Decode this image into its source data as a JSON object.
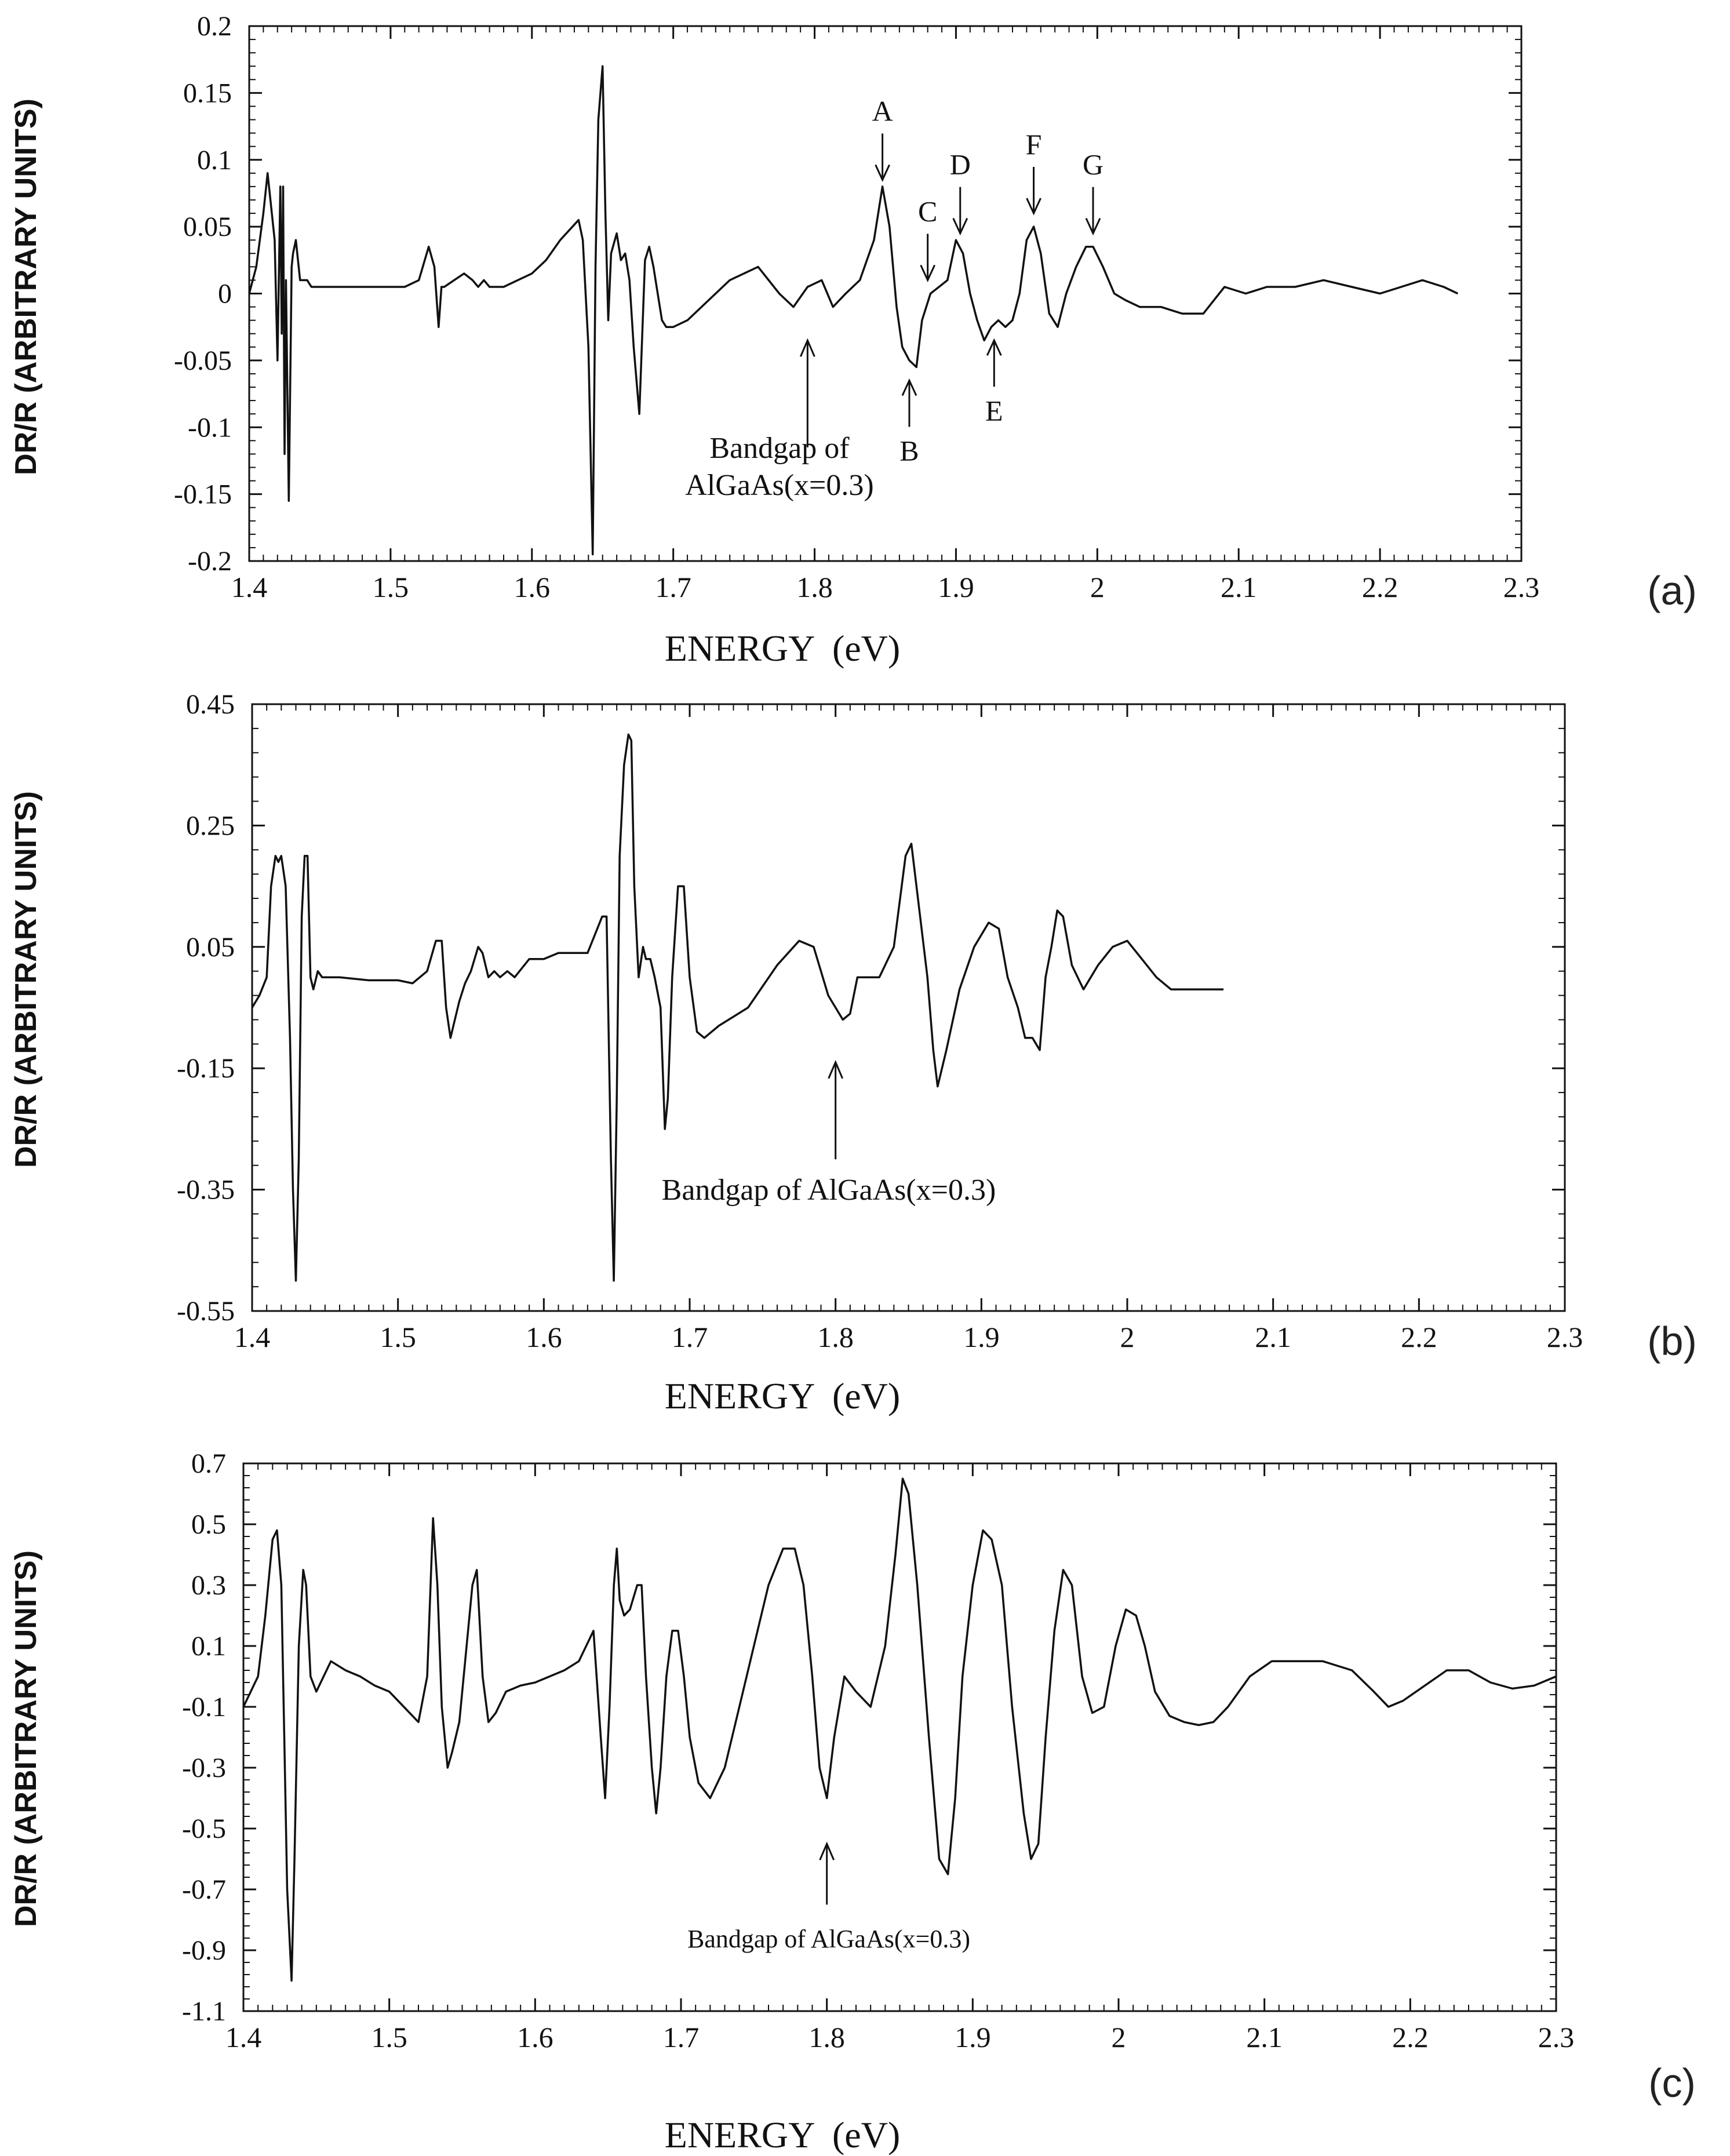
{
  "chart_data": [
    {
      "type": "line",
      "panel_label": "(a)",
      "xlabel": "ENERGY  (eV)",
      "ylabel": "DR/R (ARBITRARY UNITS)",
      "xlim": [
        1.4,
        2.3
      ],
      "ylim": [
        -0.2,
        0.2
      ],
      "x_ticks": [
        "1.4",
        "1.5",
        "1.6",
        "1.7",
        "1.8",
        "1.9",
        "2",
        "2.1",
        "2.2",
        "2.3"
      ],
      "y_ticks": [
        "0.2",
        "0.15",
        "0.1",
        "0.05",
        "0",
        "-0.05",
        "-0.1",
        "-0.15",
        "-0.2"
      ],
      "grid": false,
      "series": [
        {
          "x": [
            1.4,
            1.405,
            1.41,
            1.413,
            1.415,
            1.418,
            1.42,
            1.422,
            1.423,
            1.424,
            1.425,
            1.426,
            1.428,
            1.43,
            1.431,
            1.433,
            1.434,
            1.436,
            1.438,
            1.441,
            1.444,
            1.446,
            1.45,
            1.46,
            1.48,
            1.5,
            1.51,
            1.52,
            1.527,
            1.531,
            1.534,
            1.536,
            1.538,
            1.545,
            1.552,
            1.558,
            1.562,
            1.566,
            1.57,
            1.58,
            1.59,
            1.6,
            1.61,
            1.62,
            1.633,
            1.636,
            1.64,
            1.643,
            1.645,
            1.647,
            1.65,
            1.652,
            1.654,
            1.656,
            1.66,
            1.663,
            1.666,
            1.669,
            1.672,
            1.676,
            1.68,
            1.683,
            1.686,
            1.689,
            1.692,
            1.695,
            1.7,
            1.71,
            1.72,
            1.74,
            1.76,
            1.775,
            1.785,
            1.795,
            1.805,
            1.813,
            1.822,
            1.832,
            1.842,
            1.848,
            1.853,
            1.858,
            1.862,
            1.867,
            1.872,
            1.876,
            1.882,
            1.888,
            1.894,
            1.9,
            1.905,
            1.91,
            1.915,
            1.92,
            1.925,
            1.93,
            1.935,
            1.94,
            1.945,
            1.95,
            1.955,
            1.96,
            1.966,
            1.972,
            1.978,
            1.985,
            1.992,
            1.997,
            2.004,
            2.012,
            2.02,
            2.03,
            2.045,
            2.06,
            2.075,
            2.09,
            2.105,
            2.12,
            2.14,
            2.16,
            2.18,
            2.2,
            2.215,
            2.23,
            2.245,
            2.255
          ],
          "y": [
            0.0,
            0.02,
            0.06,
            0.09,
            0.07,
            0.04,
            -0.05,
            0.08,
            -0.03,
            0.08,
            -0.12,
            0.01,
            -0.155,
            0.02,
            0.03,
            0.04,
            0.03,
            0.01,
            0.01,
            0.01,
            0.005,
            0.005,
            0.005,
            0.005,
            0.005,
            0.005,
            0.005,
            0.01,
            0.035,
            0.02,
            -0.025,
            0.005,
            0.005,
            0.01,
            0.015,
            0.01,
            0.005,
            0.01,
            0.005,
            0.005,
            0.01,
            0.015,
            0.025,
            0.04,
            0.055,
            0.04,
            -0.04,
            -0.195,
            0.02,
            0.13,
            0.17,
            0.06,
            -0.02,
            0.03,
            0.045,
            0.025,
            0.03,
            0.01,
            -0.04,
            -0.09,
            0.025,
            0.035,
            0.02,
            0.0,
            -0.02,
            -0.025,
            -0.025,
            -0.02,
            -0.01,
            0.01,
            0.02,
            0.0,
            -0.01,
            0.005,
            0.01,
            -0.01,
            0.0,
            0.01,
            0.04,
            0.08,
            0.05,
            -0.01,
            -0.04,
            -0.05,
            -0.055,
            -0.02,
            0.0,
            0.005,
            0.01,
            0.04,
            0.03,
            0.0,
            -0.02,
            -0.035,
            -0.025,
            -0.02,
            -0.025,
            -0.02,
            0.0,
            0.04,
            0.05,
            0.03,
            -0.015,
            -0.025,
            0.0,
            0.02,
            0.035,
            0.035,
            0.02,
            0.0,
            -0.005,
            -0.01,
            -0.01,
            -0.015,
            -0.015,
            0.005,
            0.0,
            0.005,
            0.005,
            0.01,
            0.005,
            0.0,
            0.005,
            0.01,
            0.005,
            0.0
          ]
        }
      ],
      "annotations": [
        {
          "label": "A",
          "x": 1.848,
          "y": 0.085,
          "dir": "down"
        },
        {
          "label": "B",
          "x": 1.867,
          "y": -0.065,
          "dir": "up"
        },
        {
          "label": "C",
          "x": 1.88,
          "y": 0.01,
          "dir": "down"
        },
        {
          "label": "D",
          "x": 1.903,
          "y": 0.045,
          "dir": "down"
        },
        {
          "label": "E",
          "x": 1.927,
          "y": -0.035,
          "dir": "up"
        },
        {
          "label": "F",
          "x": 1.955,
          "y": 0.06,
          "dir": "down"
        },
        {
          "label": "G",
          "x": 1.997,
          "y": 0.045,
          "dir": "down"
        }
      ],
      "note_lines": [
        "Bandgap of",
        "AlGaAs(x=0.3)"
      ],
      "note_arrow": {
        "x": 1.795,
        "y_tip": -0.035,
        "y_tail": -0.115
      }
    },
    {
      "type": "line",
      "panel_label": "(b)",
      "xlabel": "ENERGY  (eV)",
      "ylabel": "DR/R (ARBITRARY UNITS)",
      "xlim": [
        1.4,
        2.3
      ],
      "ylim": [
        -0.55,
        0.45
      ],
      "x_ticks": [
        "1.4",
        "1.5",
        "1.6",
        "1.7",
        "1.8",
        "1.9",
        "2",
        "2.1",
        "2.2",
        "2.3"
      ],
      "y_ticks": [
        "0.45",
        "0.25",
        "0.05",
        "-0.15",
        "-0.35",
        "-0.55"
      ],
      "grid": false,
      "series": [
        {
          "x": [
            1.4,
            1.405,
            1.41,
            1.413,
            1.416,
            1.418,
            1.42,
            1.423,
            1.426,
            1.428,
            1.43,
            1.432,
            1.434,
            1.436,
            1.438,
            1.44,
            1.442,
            1.445,
            1.448,
            1.452,
            1.46,
            1.48,
            1.5,
            1.51,
            1.52,
            1.526,
            1.53,
            1.533,
            1.536,
            1.538,
            1.542,
            1.546,
            1.55,
            1.555,
            1.558,
            1.562,
            1.566,
            1.57,
            1.575,
            1.58,
            1.59,
            1.6,
            1.61,
            1.62,
            1.63,
            1.64,
            1.643,
            1.646,
            1.648,
            1.65,
            1.652,
            1.655,
            1.658,
            1.66,
            1.662,
            1.665,
            1.668,
            1.67,
            1.673,
            1.676,
            1.68,
            1.683,
            1.685,
            1.688,
            1.692,
            1.696,
            1.7,
            1.705,
            1.71,
            1.72,
            1.74,
            1.76,
            1.775,
            1.785,
            1.795,
            1.8,
            1.805,
            1.81,
            1.815,
            1.822,
            1.83,
            1.84,
            1.848,
            1.852,
            1.858,
            1.863,
            1.867,
            1.87,
            1.876,
            1.885,
            1.895,
            1.905,
            1.912,
            1.918,
            1.925,
            1.93,
            1.935,
            1.94,
            1.944,
            1.948,
            1.952,
            1.956,
            1.962,
            1.97,
            1.98,
            1.99,
            2.0,
            2.01,
            2.02,
            2.03,
            2.04,
            2.05,
            2.06,
            2.066
          ],
          "y": [
            -0.05,
            -0.03,
            0.0,
            0.15,
            0.2,
            0.19,
            0.2,
            0.15,
            -0.1,
            -0.35,
            -0.5,
            -0.3,
            0.1,
            0.2,
            0.2,
            0.0,
            -0.02,
            0.01,
            0.0,
            0.0,
            0.0,
            -0.005,
            -0.005,
            -0.01,
            0.01,
            0.06,
            0.06,
            -0.05,
            -0.1,
            -0.08,
            -0.04,
            -0.01,
            0.01,
            0.05,
            0.04,
            0.0,
            0.01,
            0.0,
            0.01,
            0.0,
            0.03,
            0.03,
            0.04,
            0.04,
            0.04,
            0.1,
            0.1,
            -0.3,
            -0.5,
            -0.2,
            0.2,
            0.35,
            0.4,
            0.39,
            0.15,
            0.0,
            0.05,
            0.03,
            0.03,
            0.0,
            -0.05,
            -0.25,
            -0.2,
            0.0,
            0.15,
            0.15,
            0.0,
            -0.09,
            -0.1,
            -0.08,
            -0.05,
            0.02,
            0.06,
            0.05,
            -0.03,
            -0.05,
            -0.07,
            -0.06,
            0.0,
            0.0,
            0.0,
            0.05,
            0.2,
            0.22,
            0.1,
            0.0,
            -0.12,
            -0.18,
            -0.12,
            -0.02,
            0.05,
            0.09,
            0.08,
            0.0,
            -0.05,
            -0.1,
            -0.1,
            -0.12,
            0.0,
            0.05,
            0.11,
            0.1,
            0.02,
            -0.02,
            0.02,
            0.05,
            0.06,
            0.03,
            0.0,
            -0.02,
            -0.02,
            -0.02,
            -0.02,
            -0.02
          ]
        }
      ],
      "annotations": [],
      "note_lines": [
        "Bandgap of AlGaAs(x=0.3)"
      ],
      "note_arrow": {
        "x": 1.8,
        "y_tip": -0.14,
        "y_tail": -0.3
      }
    },
    {
      "type": "line",
      "panel_label": "(c)",
      "xlabel": "ENERGY  (eV)",
      "ylabel": "DR/R (ARBITRARY UNITS)",
      "xlim": [
        1.4,
        2.3
      ],
      "ylim": [
        -1.1,
        0.7
      ],
      "x_ticks": [
        "1.4",
        "1.5",
        "1.6",
        "1.7",
        "1.8",
        "1.9",
        "2",
        "2.1",
        "2.2",
        "2.3"
      ],
      "y_ticks": [
        "0.7",
        "0.5",
        "0.3",
        "0.1",
        "-0.1",
        "-0.3",
        "-0.5",
        "-0.7",
        "-0.9",
        "-1.1"
      ],
      "grid": false,
      "series": [
        {
          "x": [
            1.4,
            1.405,
            1.41,
            1.415,
            1.42,
            1.423,
            1.426,
            1.428,
            1.43,
            1.433,
            1.435,
            1.438,
            1.441,
            1.443,
            1.446,
            1.45,
            1.455,
            1.46,
            1.47,
            1.48,
            1.49,
            1.5,
            1.51,
            1.52,
            1.526,
            1.53,
            1.533,
            1.536,
            1.54,
            1.543,
            1.548,
            1.553,
            1.557,
            1.56,
            1.564,
            1.568,
            1.573,
            1.58,
            1.59,
            1.6,
            1.61,
            1.62,
            1.63,
            1.64,
            1.645,
            1.648,
            1.651,
            1.654,
            1.656,
            1.658,
            1.661,
            1.665,
            1.67,
            1.673,
            1.676,
            1.68,
            1.683,
            1.686,
            1.69,
            1.694,
            1.698,
            1.702,
            1.706,
            1.712,
            1.72,
            1.73,
            1.74,
            1.75,
            1.76,
            1.77,
            1.778,
            1.784,
            1.79,
            1.795,
            1.8,
            1.805,
            1.812,
            1.82,
            1.83,
            1.84,
            1.847,
            1.852,
            1.856,
            1.862,
            1.87,
            1.877,
            1.883,
            1.888,
            1.893,
            1.9,
            1.907,
            1.913,
            1.92,
            1.927,
            1.935,
            1.94,
            1.945,
            1.95,
            1.956,
            1.962,
            1.968,
            1.975,
            1.982,
            1.99,
            1.998,
            2.005,
            2.012,
            2.018,
            2.025,
            2.035,
            2.045,
            2.055,
            2.065,
            2.075,
            2.09,
            2.105,
            2.12,
            2.14,
            2.16,
            2.175,
            2.185,
            2.195,
            2.21,
            2.225,
            2.24,
            2.255,
            2.27,
            2.285,
            2.3
          ],
          "y": [
            -0.1,
            -0.05,
            0.0,
            0.2,
            0.45,
            0.48,
            0.3,
            -0.2,
            -0.7,
            -1.0,
            -0.6,
            0.1,
            0.35,
            0.3,
            0.0,
            -0.05,
            0.0,
            0.05,
            0.02,
            0.0,
            -0.03,
            -0.05,
            -0.1,
            -0.15,
            0.0,
            0.52,
            0.3,
            -0.1,
            -0.3,
            -0.25,
            -0.15,
            0.1,
            0.3,
            0.35,
            0.0,
            -0.15,
            -0.12,
            -0.05,
            -0.03,
            -0.02,
            0.0,
            0.02,
            0.05,
            0.15,
            -0.2,
            -0.4,
            -0.1,
            0.3,
            0.42,
            0.25,
            0.2,
            0.22,
            0.3,
            0.3,
            0.0,
            -0.3,
            -0.45,
            -0.3,
            0.0,
            0.15,
            0.15,
            0.0,
            -0.2,
            -0.35,
            -0.4,
            -0.3,
            -0.1,
            0.1,
            0.3,
            0.42,
            0.42,
            0.3,
            0.0,
            -0.3,
            -0.4,
            -0.2,
            0.0,
            -0.05,
            -0.1,
            0.1,
            0.4,
            0.65,
            0.6,
            0.3,
            -0.2,
            -0.6,
            -0.65,
            -0.4,
            0.0,
            0.3,
            0.48,
            0.45,
            0.3,
            -0.1,
            -0.45,
            -0.6,
            -0.55,
            -0.2,
            0.15,
            0.35,
            0.3,
            0.0,
            -0.12,
            -0.1,
            0.1,
            0.22,
            0.2,
            0.1,
            -0.05,
            -0.13,
            -0.15,
            -0.16,
            -0.15,
            -0.1,
            0.0,
            0.05,
            0.05,
            0.05,
            0.02,
            -0.05,
            -0.1,
            -0.08,
            -0.03,
            0.02,
            0.02,
            -0.02,
            -0.04,
            -0.03,
            0.0
          ]
        }
      ],
      "annotations": [],
      "note_lines": [
        "Bandgap of AlGaAs(x=0.3)"
      ],
      "note_arrow": {
        "x": 1.8,
        "y_tip": -0.55,
        "y_tail": -0.75
      }
    }
  ]
}
